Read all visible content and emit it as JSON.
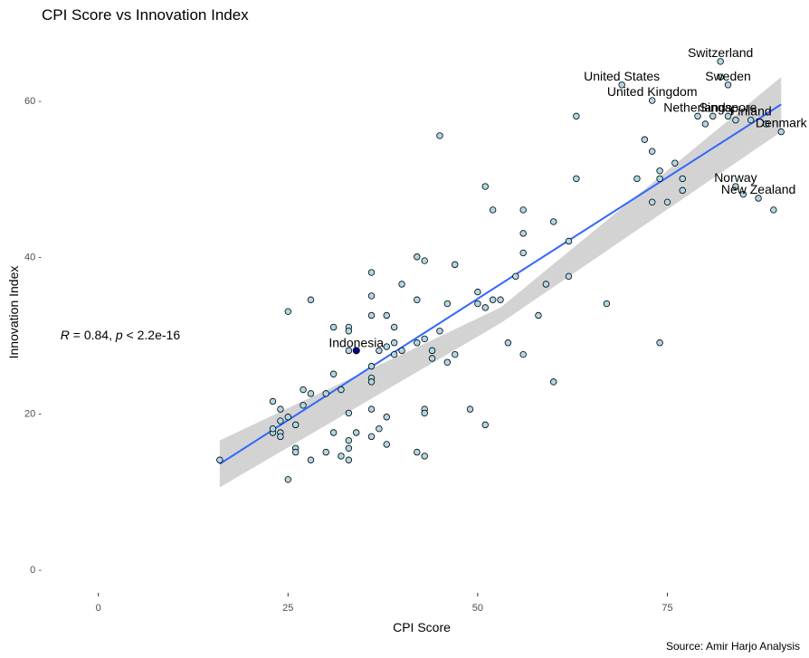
{
  "chart_data": {
    "type": "scatter",
    "title": "CPI Score vs Innovation Index",
    "xlabel": "CPI Score",
    "ylabel": "Innovation Index",
    "xlim": [
      -7,
      92
    ],
    "ylim": [
      -3,
      68
    ],
    "x_ticks": [
      0,
      25,
      50,
      75
    ],
    "x_tick_labels": [
      "0",
      "25",
      "50",
      "75"
    ],
    "y_ticks": [
      0,
      20,
      40,
      60
    ],
    "y_tick_labels": [
      "0 -",
      "20 -",
      "40 -",
      "60 -"
    ],
    "grid": false,
    "caption": "Source: Amir Harjo Analysis",
    "colors": {
      "point_fill": "#add8e6",
      "point_stroke": "#000000",
      "highlight_fill": "#00008b",
      "regression_line": "#3366ff",
      "confidence_band": "#d3d3d3"
    },
    "annotation": {
      "r_symbol": "R",
      "r_text": " = 0.84, ",
      "p_symbol": "p",
      "p_text": " < 2.2e-16",
      "x": -5,
      "y": 30
    },
    "regression": {
      "x_start": 16,
      "y_start": 13.5,
      "x_end": 90,
      "y_end": 59.5,
      "band_start": [
        10.5,
        16.5
      ],
      "band_mid": [
        31.5,
        33.5
      ],
      "band_end": [
        56,
        63
      ]
    },
    "highlight": {
      "name": "Indonesia",
      "x": 34,
      "y": 28
    },
    "labeled_points": [
      {
        "name": "Switzerland",
        "x": 82,
        "y": 65
      },
      {
        "name": "Sweden",
        "x": 83,
        "y": 62
      },
      {
        "name": "United States",
        "x": 69,
        "y": 62
      },
      {
        "name": "United Kingdom",
        "x": 73,
        "y": 60
      },
      {
        "name": "Netherlands",
        "x": 79,
        "y": 58
      },
      {
        "name": "Singapore",
        "x": 83,
        "y": 58
      },
      {
        "name": "Finland",
        "x": 86,
        "y": 57.5
      },
      {
        "name": "Denmark",
        "x": 90,
        "y": 56
      },
      {
        "name": "Norway",
        "x": 84,
        "y": 49
      },
      {
        "name": "New Zealand",
        "x": 87,
        "y": 47.5
      }
    ],
    "points": [
      [
        16,
        14
      ],
      [
        23,
        21.5
      ],
      [
        23,
        17.5
      ],
      [
        23,
        18
      ],
      [
        24,
        17.5
      ],
      [
        24,
        19
      ],
      [
        24,
        20.5
      ],
      [
        24,
        17
      ],
      [
        25,
        19.5
      ],
      [
        25,
        11.5
      ],
      [
        25,
        33
      ],
      [
        26,
        15.5
      ],
      [
        26,
        15
      ],
      [
        26,
        18.5
      ],
      [
        27,
        21
      ],
      [
        27,
        23
      ],
      [
        28,
        34.5
      ],
      [
        28,
        14
      ],
      [
        28,
        22.5
      ],
      [
        30,
        15
      ],
      [
        30,
        22.5
      ],
      [
        31,
        31
      ],
      [
        31,
        25
      ],
      [
        31,
        17.5
      ],
      [
        32,
        14.5
      ],
      [
        32,
        23
      ],
      [
        33,
        31
      ],
      [
        33,
        30.5
      ],
      [
        33,
        28
      ],
      [
        33,
        20
      ],
      [
        33,
        16.5
      ],
      [
        33,
        15.5
      ],
      [
        33,
        14
      ],
      [
        34,
        17.5
      ],
      [
        36,
        38
      ],
      [
        36,
        35
      ],
      [
        36,
        32.5
      ],
      [
        36,
        26
      ],
      [
        36,
        24.5
      ],
      [
        36,
        24
      ],
      [
        36,
        20.5
      ],
      [
        36,
        17
      ],
      [
        37,
        28
      ],
      [
        37,
        18
      ],
      [
        38,
        32.5
      ],
      [
        38,
        28.5
      ],
      [
        38,
        19.5
      ],
      [
        38,
        16
      ],
      [
        39,
        31
      ],
      [
        39,
        29
      ],
      [
        39,
        27.5
      ],
      [
        40,
        36.5
      ],
      [
        40,
        28
      ],
      [
        42,
        40
      ],
      [
        42,
        34.5
      ],
      [
        42,
        29
      ],
      [
        42,
        15
      ],
      [
        43,
        39.5
      ],
      [
        43,
        29.5
      ],
      [
        43,
        20.5
      ],
      [
        43,
        20
      ],
      [
        43,
        14.5
      ],
      [
        44,
        28
      ],
      [
        44,
        27
      ],
      [
        45,
        55.5
      ],
      [
        45,
        30.5
      ],
      [
        46,
        34
      ],
      [
        46,
        26.5
      ],
      [
        47,
        39
      ],
      [
        47,
        27.5
      ],
      [
        49,
        20.5
      ],
      [
        50,
        35.5
      ],
      [
        50,
        34
      ],
      [
        51,
        49
      ],
      [
        51,
        33.5
      ],
      [
        51,
        18.5
      ],
      [
        52,
        46
      ],
      [
        52,
        34.5
      ],
      [
        53,
        34.5
      ],
      [
        54,
        29
      ],
      [
        55,
        37.5
      ],
      [
        56,
        46
      ],
      [
        56,
        43
      ],
      [
        56,
        40.5
      ],
      [
        56,
        27.5
      ],
      [
        58,
        32.5
      ],
      [
        59,
        36.5
      ],
      [
        60,
        44.5
      ],
      [
        60,
        24
      ],
      [
        62,
        42
      ],
      [
        62,
        37.5
      ],
      [
        63,
        58
      ],
      [
        63,
        50
      ],
      [
        67,
        34
      ],
      [
        71,
        50
      ],
      [
        72,
        55
      ],
      [
        73,
        53.5
      ],
      [
        73,
        47
      ],
      [
        74,
        51
      ],
      [
        74,
        50
      ],
      [
        74,
        29
      ],
      [
        75,
        47
      ],
      [
        76,
        52
      ],
      [
        77,
        50
      ],
      [
        77,
        48.5
      ],
      [
        80,
        57
      ],
      [
        81,
        58
      ],
      [
        82,
        63
      ],
      [
        84,
        57.5
      ],
      [
        85,
        48
      ],
      [
        88,
        57
      ],
      [
        89,
        46
      ]
    ]
  }
}
